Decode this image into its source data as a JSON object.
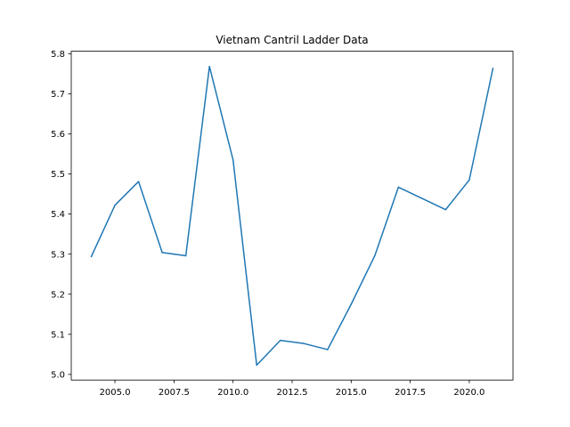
{
  "chart_data": {
    "type": "line",
    "title": "Vietnam Cantril Ladder Data",
    "xlabel": "",
    "ylabel": "",
    "xlim": [
      2003.15,
      2021.85
    ],
    "ylim": [
      4.986,
      5.806
    ],
    "xticks": [
      2005.0,
      2007.5,
      2010.0,
      2012.5,
      2015.0,
      2017.5,
      2020.0
    ],
    "xtick_labels": [
      "2005.0",
      "2007.5",
      "2010.0",
      "2012.5",
      "2015.0",
      "2017.5",
      "2020.0"
    ],
    "yticks": [
      5.0,
      5.1,
      5.2,
      5.3,
      5.4,
      5.5,
      5.6,
      5.7,
      5.8
    ],
    "ytick_labels": [
      "5.0",
      "5.1",
      "5.2",
      "5.3",
      "5.4",
      "5.5",
      "5.6",
      "5.7",
      "5.8"
    ],
    "grid": false,
    "series": [
      {
        "color": "#1f77b4",
        "x": [
          2004,
          2005,
          2006,
          2007,
          2008,
          2009,
          2010,
          2011,
          2012,
          2013,
          2014,
          2015,
          2016,
          2017,
          2018,
          2019,
          2020,
          2021
        ],
        "y": [
          5.294,
          5.422,
          5.481,
          5.304,
          5.296,
          5.768,
          5.535,
          5.023,
          5.085,
          5.077,
          5.062,
          5.175,
          5.296,
          5.467,
          5.439,
          5.411,
          5.485,
          5.763
        ]
      }
    ]
  }
}
